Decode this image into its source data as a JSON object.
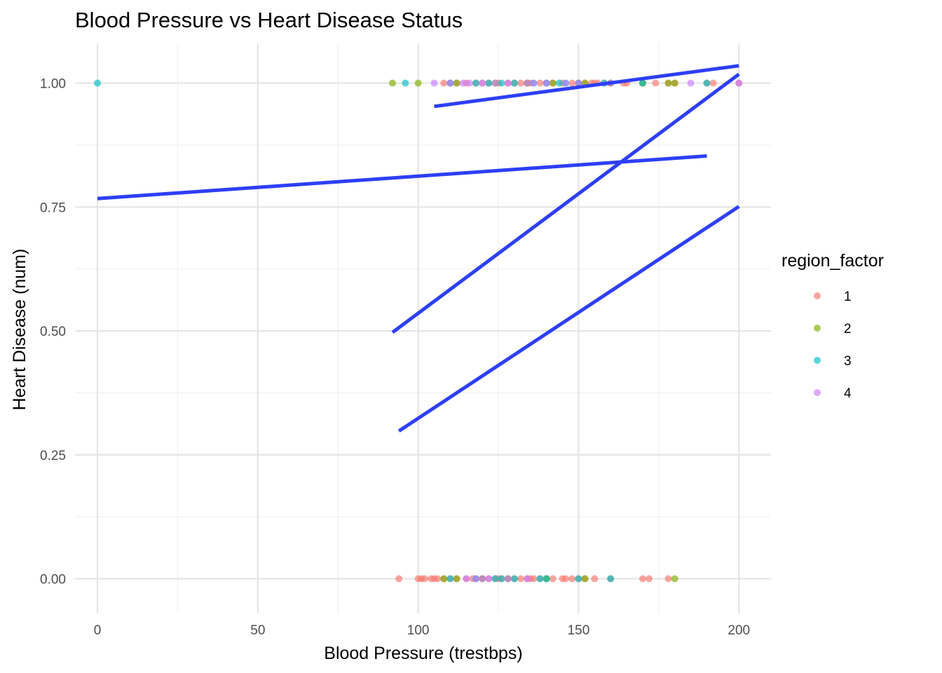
{
  "chart_data": {
    "type": "scatter",
    "title": "Blood Pressure vs Heart Disease Status",
    "xlabel": "Blood Pressure (trestbps)",
    "ylabel": "Heart Disease (num)",
    "xlim": [
      -7,
      210
    ],
    "ylim": [
      -0.07,
      1.08
    ],
    "x_ticks": [
      0,
      50,
      100,
      150,
      200
    ],
    "x_tick_labels": [
      "0",
      "50",
      "100",
      "150",
      "200"
    ],
    "y_ticks": [
      0,
      0.25,
      0.5,
      0.75,
      1
    ],
    "y_tick_labels": [
      "0.00",
      "0.25",
      "0.50",
      "0.75",
      "1.00"
    ],
    "grid": true,
    "legend": {
      "title": "region_factor",
      "position": "right"
    },
    "series": [
      {
        "name": "1",
        "color": "#F8766D",
        "points_y1": [
          108,
          110,
          112,
          115,
          118,
          120,
          122,
          125,
          128,
          130,
          132,
          134,
          135,
          138,
          140,
          142,
          145,
          148,
          150,
          152,
          154,
          155,
          156,
          158,
          160,
          164,
          165,
          170,
          174,
          178,
          180,
          190,
          192,
          200
        ],
        "points_y0": [
          94,
          100,
          101,
          102,
          104,
          105,
          106,
          108,
          110,
          112,
          115,
          117,
          118,
          120,
          122,
          124,
          125,
          126,
          128,
          130,
          132,
          134,
          135,
          136,
          138,
          140,
          142,
          145,
          146,
          148,
          150,
          152,
          155,
          160,
          170,
          172,
          178
        ]
      },
      {
        "name": "2",
        "color": "#7CAE00",
        "points_y1": [
          92,
          100,
          112,
          124,
          134,
          142,
          152,
          160,
          170,
          178,
          180
        ],
        "points_y0": [
          108,
          112,
          120,
          128,
          140,
          152,
          180
        ]
      },
      {
        "name": "3",
        "color": "#00BFC4",
        "points_y1": [
          0,
          96,
          110,
          118,
          122,
          126,
          130,
          136,
          140,
          144,
          146,
          150,
          158,
          170,
          190
        ],
        "points_y0": [
          110,
          118,
          124,
          126,
          130,
          138,
          140,
          150,
          160
        ]
      },
      {
        "name": "4",
        "color": "#C77CFF",
        "points_y1": [
          105,
          110,
          114,
          116,
          120,
          124,
          128,
          134,
          136,
          140,
          146,
          150,
          160,
          185,
          200
        ],
        "points_y0": [
          115,
          118,
          120,
          122,
          128,
          134
        ]
      }
    ],
    "fit_lines": [
      {
        "color": "#2D3FF5",
        "x": [
          0,
          190
        ],
        "y": [
          0.767,
          0.853
        ]
      },
      {
        "color": "#2D3FF5",
        "x": [
          92,
          200
        ],
        "y": [
          0.497,
          1.018
        ]
      },
      {
        "color": "#2D3FF5",
        "x": [
          94,
          200
        ],
        "y": [
          0.298,
          0.751
        ]
      },
      {
        "color": "#2D3FF5",
        "x": [
          105,
          200
        ],
        "y": [
          0.953,
          1.035
        ]
      }
    ]
  }
}
